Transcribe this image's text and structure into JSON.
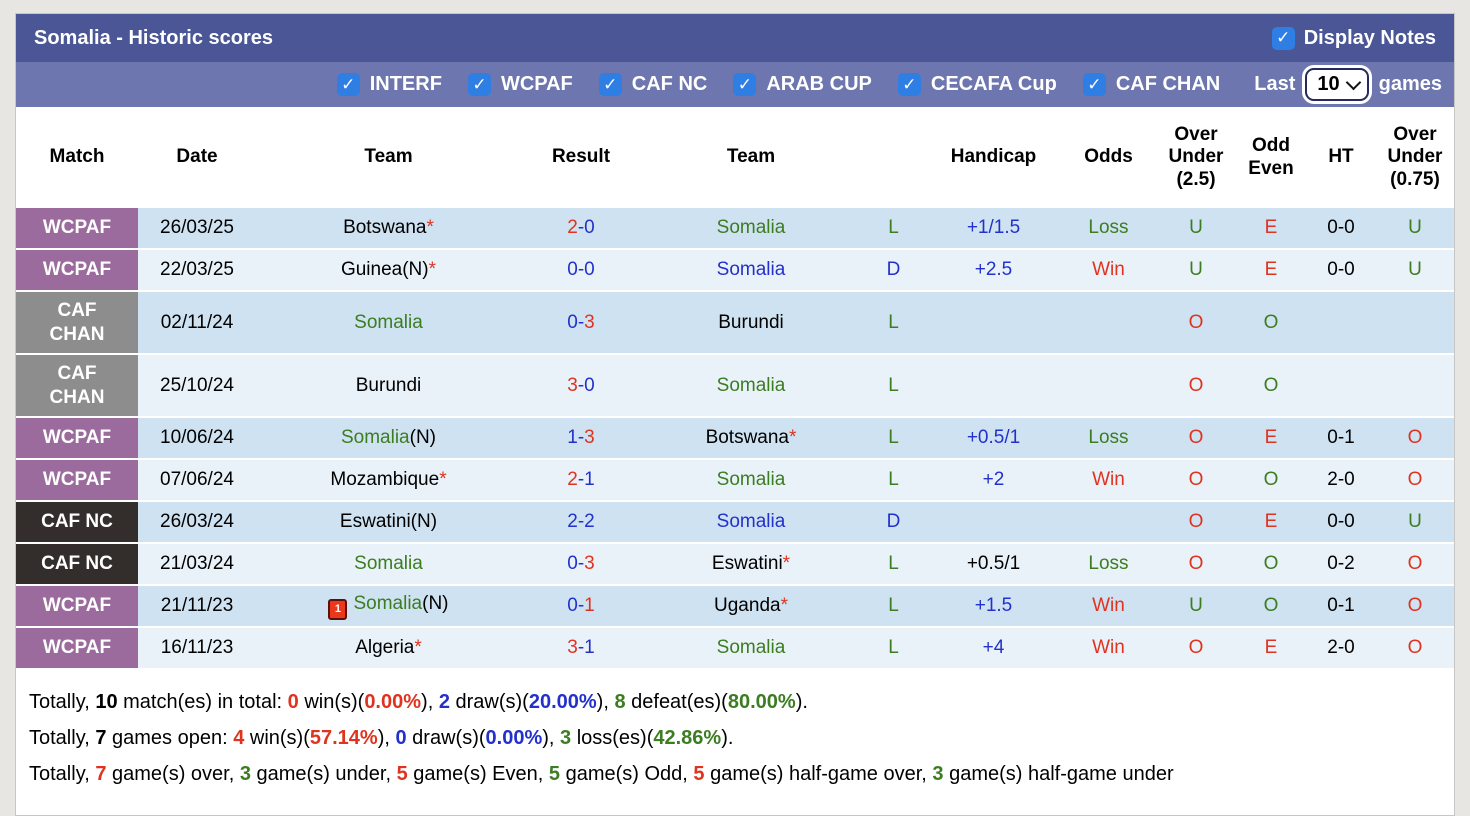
{
  "header": {
    "title": "Somalia - Historic scores",
    "display_notes_label": "Display Notes"
  },
  "filters": {
    "competitions": [
      "INTERF",
      "WCPAF",
      "CAF NC",
      "ARAB CUP",
      "CECAFA Cup",
      "CAF CHAN"
    ],
    "all_checked": true,
    "last_label": "Last",
    "last_value": "10",
    "games_label": "games"
  },
  "colors": {
    "titlebar_bg": "#4a5695",
    "filterbar_bg": "#6d76ae",
    "checkbox_blue": "#2e7ee4",
    "row_dark": "#cfe2f1",
    "row_light": "#e9f2f9",
    "label_purple": "#9a6b9c",
    "label_gray": "#8d8d8d",
    "label_black": "#332e2b",
    "win_red": "#e0331f",
    "draw_blue": "#2331cc",
    "loss_green": "#3c7d21"
  },
  "table": {
    "columns": [
      {
        "key": "match",
        "lines": [
          "Match"
        ]
      },
      {
        "key": "date",
        "lines": [
          "Date"
        ]
      },
      {
        "key": "team-home",
        "lines": [
          "Team"
        ]
      },
      {
        "key": "result",
        "lines": [
          "Result"
        ]
      },
      {
        "key": "team-away",
        "lines": [
          "Team"
        ]
      },
      {
        "key": "result-letter",
        "lines": []
      },
      {
        "key": "handicap",
        "lines": [
          "Handicap"
        ]
      },
      {
        "key": "odds",
        "lines": [
          "Odds"
        ]
      },
      {
        "key": "over-under-2-5",
        "lines": [
          "Over",
          "Under",
          "(2.5)"
        ]
      },
      {
        "key": "odd-even",
        "lines": [
          "Odd",
          "Even"
        ]
      },
      {
        "key": "ht",
        "lines": [
          "HT"
        ]
      },
      {
        "key": "over-under-0-75",
        "lines": [
          "Over",
          "Under",
          "(0.75)"
        ]
      }
    ]
  },
  "rows": [
    {
      "match": {
        "lines": [
          "WCPAF"
        ],
        "bg": "purple"
      },
      "date": "26/03/25",
      "home": {
        "name": "Botswana",
        "color": "black",
        "star": true
      },
      "result": {
        "home": "2",
        "home_color": "red",
        "away": "0",
        "away_color": "blue"
      },
      "away": {
        "name": "Somalia",
        "color": "green"
      },
      "letter": {
        "text": "L",
        "color": "green"
      },
      "handicap": {
        "text": "+1/1.5",
        "color": "blue"
      },
      "odds": {
        "text": "Loss",
        "color": "green"
      },
      "over_under_25": {
        "text": "U",
        "color": "green"
      },
      "odd_even": {
        "text": "E",
        "color": "red"
      },
      "ht": "0-0",
      "over_under_075": {
        "text": "U",
        "color": "green"
      }
    },
    {
      "match": {
        "lines": [
          "WCPAF"
        ],
        "bg": "purple"
      },
      "date": "22/03/25",
      "home": {
        "name": "Guinea",
        "suffix": "(N)",
        "color": "black",
        "star": true
      },
      "result": {
        "home": "0",
        "home_color": "blue",
        "away": "0",
        "away_color": "blue"
      },
      "away": {
        "name": "Somalia",
        "color": "blue"
      },
      "letter": {
        "text": "D",
        "color": "blue"
      },
      "handicap": {
        "text": "+2.5",
        "color": "blue"
      },
      "odds": {
        "text": "Win",
        "color": "red"
      },
      "over_under_25": {
        "text": "U",
        "color": "green"
      },
      "odd_even": {
        "text": "E",
        "color": "red"
      },
      "ht": "0-0",
      "over_under_075": {
        "text": "U",
        "color": "green"
      }
    },
    {
      "match": {
        "lines": [
          "CAF",
          "CHAN"
        ],
        "bg": "gray"
      },
      "date": "02/11/24",
      "home": {
        "name": "Somalia",
        "color": "green"
      },
      "result": {
        "home": "0",
        "home_color": "blue",
        "away": "3",
        "away_color": "red"
      },
      "away": {
        "name": "Burundi",
        "color": "black"
      },
      "letter": {
        "text": "L",
        "color": "green"
      },
      "handicap": null,
      "odds": null,
      "over_under_25": {
        "text": "O",
        "color": "red"
      },
      "odd_even": {
        "text": "O",
        "color": "green"
      },
      "ht": null,
      "over_under_075": null
    },
    {
      "match": {
        "lines": [
          "CAF",
          "CHAN"
        ],
        "bg": "gray"
      },
      "date": "25/10/24",
      "home": {
        "name": "Burundi",
        "color": "black"
      },
      "result": {
        "home": "3",
        "home_color": "red",
        "away": "0",
        "away_color": "blue"
      },
      "away": {
        "name": "Somalia",
        "color": "green"
      },
      "letter": {
        "text": "L",
        "color": "green"
      },
      "handicap": null,
      "odds": null,
      "over_under_25": {
        "text": "O",
        "color": "red"
      },
      "odd_even": {
        "text": "O",
        "color": "green"
      },
      "ht": null,
      "over_under_075": null
    },
    {
      "match": {
        "lines": [
          "WCPAF"
        ],
        "bg": "purple"
      },
      "date": "10/06/24",
      "home": {
        "name": "Somalia",
        "suffix": "(N)",
        "color": "green"
      },
      "result": {
        "home": "1",
        "home_color": "blue",
        "away": "3",
        "away_color": "red"
      },
      "away": {
        "name": "Botswana",
        "color": "black",
        "star": true
      },
      "letter": {
        "text": "L",
        "color": "green"
      },
      "handicap": {
        "text": "+0.5/1",
        "color": "blue"
      },
      "odds": {
        "text": "Loss",
        "color": "green"
      },
      "over_under_25": {
        "text": "O",
        "color": "red"
      },
      "odd_even": {
        "text": "E",
        "color": "red"
      },
      "ht": "0-1",
      "over_under_075": {
        "text": "O",
        "color": "red"
      }
    },
    {
      "match": {
        "lines": [
          "WCPAF"
        ],
        "bg": "purple"
      },
      "date": "07/06/24",
      "home": {
        "name": "Mozambique",
        "color": "black",
        "star": true
      },
      "result": {
        "home": "2",
        "home_color": "red",
        "away": "1",
        "away_color": "blue"
      },
      "away": {
        "name": "Somalia",
        "color": "green"
      },
      "letter": {
        "text": "L",
        "color": "green"
      },
      "handicap": {
        "text": "+2",
        "color": "blue"
      },
      "odds": {
        "text": "Win",
        "color": "red"
      },
      "over_under_25": {
        "text": "O",
        "color": "red"
      },
      "odd_even": {
        "text": "O",
        "color": "green"
      },
      "ht": "2-0",
      "over_under_075": {
        "text": "O",
        "color": "red"
      }
    },
    {
      "match": {
        "lines": [
          "CAF NC"
        ],
        "bg": "dark"
      },
      "date": "26/03/24",
      "home": {
        "name": "Eswatini",
        "suffix": "(N)",
        "color": "black"
      },
      "result": {
        "home": "2",
        "home_color": "blue",
        "away": "2",
        "away_color": "blue"
      },
      "away": {
        "name": "Somalia",
        "color": "blue"
      },
      "letter": {
        "text": "D",
        "color": "blue"
      },
      "handicap": null,
      "odds": null,
      "over_under_25": {
        "text": "O",
        "color": "red"
      },
      "odd_even": {
        "text": "E",
        "color": "red"
      },
      "ht": "0-0",
      "over_under_075": {
        "text": "U",
        "color": "green"
      }
    },
    {
      "match": {
        "lines": [
          "CAF NC"
        ],
        "bg": "dark"
      },
      "date": "21/03/24",
      "home": {
        "name": "Somalia",
        "color": "green"
      },
      "result": {
        "home": "0",
        "home_color": "blue",
        "away": "3",
        "away_color": "red"
      },
      "away": {
        "name": "Eswatini",
        "color": "black",
        "star": true
      },
      "letter": {
        "text": "L",
        "color": "green"
      },
      "handicap": {
        "text": "+0.5/1",
        "color": "black"
      },
      "odds": {
        "text": "Loss",
        "color": "green"
      },
      "over_under_25": {
        "text": "O",
        "color": "red"
      },
      "odd_even": {
        "text": "O",
        "color": "green"
      },
      "ht": "0-2",
      "over_under_075": {
        "text": "O",
        "color": "red"
      }
    },
    {
      "match": {
        "lines": [
          "WCPAF"
        ],
        "bg": "purple"
      },
      "date": "21/11/23",
      "home": {
        "name": "Somalia",
        "suffix": "(N)",
        "color": "green",
        "red_card": "1"
      },
      "result": {
        "home": "0",
        "home_color": "blue",
        "away": "1",
        "away_color": "red"
      },
      "away": {
        "name": "Uganda",
        "color": "black",
        "star": true
      },
      "letter": {
        "text": "L",
        "color": "green"
      },
      "handicap": {
        "text": "+1.5",
        "color": "blue"
      },
      "odds": {
        "text": "Win",
        "color": "red"
      },
      "over_under_25": {
        "text": "U",
        "color": "green"
      },
      "odd_even": {
        "text": "O",
        "color": "green"
      },
      "ht": "0-1",
      "over_under_075": {
        "text": "O",
        "color": "red"
      }
    },
    {
      "match": {
        "lines": [
          "WCPAF"
        ],
        "bg": "purple"
      },
      "date": "16/11/23",
      "home": {
        "name": "Algeria",
        "color": "black",
        "star": true
      },
      "result": {
        "home": "3",
        "home_color": "red",
        "away": "1",
        "away_color": "blue"
      },
      "away": {
        "name": "Somalia",
        "color": "green"
      },
      "letter": {
        "text": "L",
        "color": "green"
      },
      "handicap": {
        "text": "+4",
        "color": "blue"
      },
      "odds": {
        "text": "Win",
        "color": "red"
      },
      "over_under_25": {
        "text": "O",
        "color": "red"
      },
      "odd_even": {
        "text": "E",
        "color": "red"
      },
      "ht": "2-0",
      "over_under_075": {
        "text": "O",
        "color": "red"
      }
    }
  ],
  "summary": [
    {
      "segments": [
        {
          "t": "Totally, "
        },
        {
          "t": "10",
          "b": true
        },
        {
          "t": " match(es) in total: "
        },
        {
          "t": "0",
          "c": "red",
          "b": true
        },
        {
          "t": " win(s)("
        },
        {
          "t": "0.00%",
          "c": "red",
          "b": true
        },
        {
          "t": "), "
        },
        {
          "t": "2",
          "c": "blue",
          "b": true
        },
        {
          "t": " draw(s)("
        },
        {
          "t": "20.00%",
          "c": "blue",
          "b": true
        },
        {
          "t": "), "
        },
        {
          "t": "8",
          "c": "green",
          "b": true
        },
        {
          "t": " defeat(es)("
        },
        {
          "t": "80.00%",
          "c": "green",
          "b": true
        },
        {
          "t": ")."
        }
      ]
    },
    {
      "segments": [
        {
          "t": "Totally, "
        },
        {
          "t": "7",
          "b": true
        },
        {
          "t": " games open: "
        },
        {
          "t": "4",
          "c": "red",
          "b": true
        },
        {
          "t": " win(s)("
        },
        {
          "t": "57.14%",
          "c": "red",
          "b": true
        },
        {
          "t": "), "
        },
        {
          "t": "0",
          "c": "blue",
          "b": true
        },
        {
          "t": " draw(s)("
        },
        {
          "t": "0.00%",
          "c": "blue",
          "b": true
        },
        {
          "t": "), "
        },
        {
          "t": "3",
          "c": "green",
          "b": true
        },
        {
          "t": " loss(es)("
        },
        {
          "t": "42.86%",
          "c": "green",
          "b": true
        },
        {
          "t": ")."
        }
      ]
    },
    {
      "segments": [
        {
          "t": "Totally, "
        },
        {
          "t": "7",
          "c": "red",
          "b": true
        },
        {
          "t": " game(s) over, "
        },
        {
          "t": "3",
          "c": "green",
          "b": true
        },
        {
          "t": " game(s) under, "
        },
        {
          "t": "5",
          "c": "red",
          "b": true
        },
        {
          "t": " game(s) Even, "
        },
        {
          "t": "5",
          "c": "green",
          "b": true
        },
        {
          "t": " game(s) Odd, "
        },
        {
          "t": "5",
          "c": "red",
          "b": true
        },
        {
          "t": " game(s) half-game over, "
        },
        {
          "t": "3",
          "c": "green",
          "b": true
        },
        {
          "t": " game(s) half-game under"
        }
      ]
    }
  ]
}
